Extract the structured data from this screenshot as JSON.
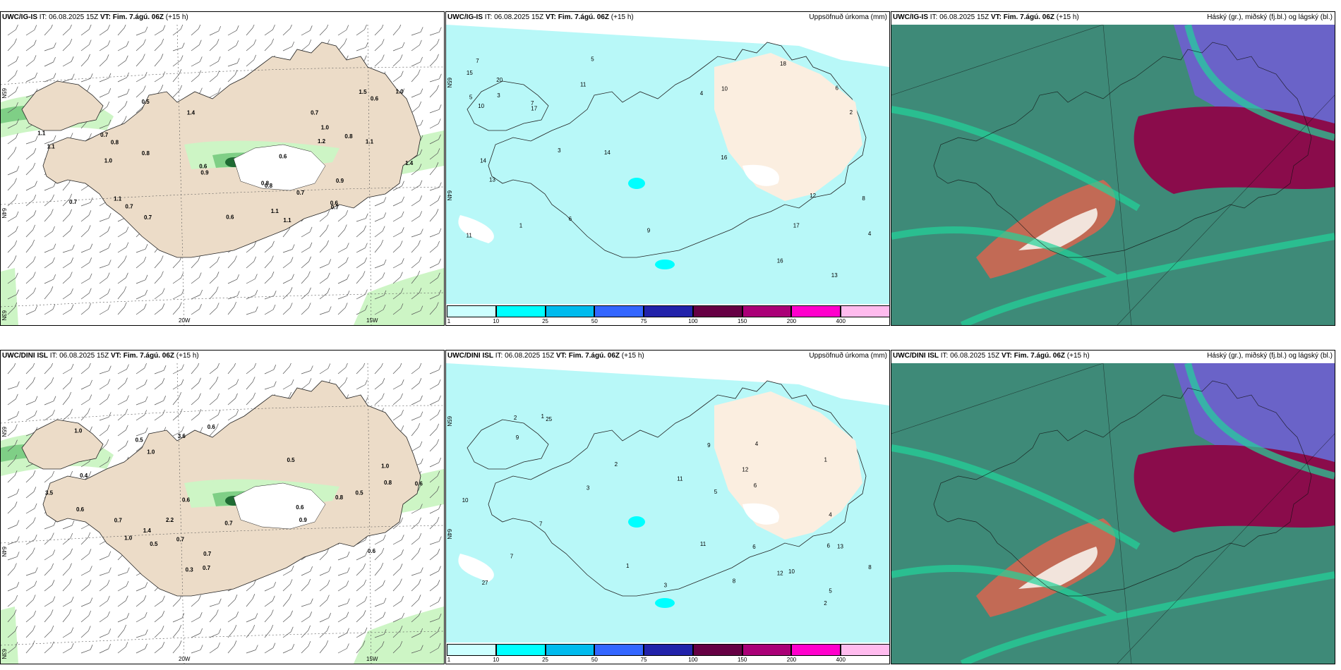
{
  "panels": [
    {
      "model": "UWC/IG-IS",
      "it_label": "IT:",
      "it_value": "06.08.2025 15Z",
      "vt_label": "VT:",
      "vt_value": "Fim. 7.ágú. 06Z",
      "lead": "(+15 h)",
      "right_title": "",
      "type": "precip-wind",
      "lat_labels": [
        "65N",
        "64N",
        "63N"
      ],
      "lon_labels": [
        "20W",
        "15W"
      ],
      "values": [
        "1.1",
        "0.5",
        "1.1",
        "0.7",
        "0.8",
        "1.1",
        "1.4",
        "0.8",
        "0.9",
        "0.7",
        "0.7",
        "1.1",
        "0.6",
        "0.8",
        "1.2",
        "1.5",
        "1.1",
        "0.6",
        "0.9",
        "1.1",
        "0.6",
        "0.8",
        "0.7",
        "0.7",
        "0.6",
        "1.0",
        "1.0",
        "0.8",
        "0.6",
        "1.4",
        "0.7",
        "1.0",
        "0.7"
      ]
    },
    {
      "model": "UWC/IG-IS",
      "it_label": "IT:",
      "it_value": "06.08.2025 15Z",
      "vt_label": "VT:",
      "vt_value": "Fim. 7.ágú. 06Z",
      "lead": "(+15 h)",
      "right_title": "Uppsöfnuð úrkoma (mm)",
      "type": "accum",
      "lat_labels": [
        "65N",
        "64N"
      ],
      "values": [
        "20",
        "14",
        "16",
        "11",
        "10",
        "7",
        "6",
        "4",
        "5",
        "7",
        "9",
        "17",
        "13",
        "14",
        "12",
        "11",
        "15",
        "16",
        "17",
        "18",
        "13",
        "10",
        "8",
        "4",
        "3",
        "2",
        "1",
        "3",
        "5",
        "6"
      ]
    },
    {
      "model": "UWC/IG-IS",
      "it_label": "IT:",
      "it_value": "06.08.2025 15Z",
      "vt_label": "VT:",
      "vt_value": "Fim. 7.ágú. 06Z",
      "lead": "(+15 h)",
      "right_title": "Háský (gr.), miðský (fj.bl.) og lágský (bl.)",
      "type": "cloud"
    },
    {
      "model": "UWC/DINI ISL",
      "it_label": "IT:",
      "it_value": "06.08.2025 15Z",
      "vt_label": "VT:",
      "vt_value": "Fim. 7.ágú. 06Z",
      "lead": "(+15 h)",
      "right_title": "",
      "type": "precip-wind",
      "lat_labels": [
        "65N",
        "64N",
        "63N"
      ],
      "lon_labels": [
        "20W",
        "15W"
      ],
      "values": [
        "2.2",
        "0.5",
        "0.7",
        "0.6",
        "0.7",
        "1.0",
        "0.5",
        "0.7",
        "0.5",
        "0.7",
        "1.0",
        "0.6",
        "1.0",
        "0.7",
        "0.5",
        "0.9",
        "1.4",
        "0.8",
        "0.6",
        "0.4",
        "0.3",
        "0.8",
        "1.0",
        "0.6",
        "0.6",
        "0.6",
        "3.5",
        "3.6"
      ]
    },
    {
      "model": "UWC/DINI ISL",
      "it_label": "IT:",
      "it_value": "06.08.2025 15Z",
      "vt_label": "VT:",
      "vt_value": "Fim. 7.ágú. 06Z",
      "lead": "(+15 h)",
      "right_title": "Uppsöfnuð úrkoma (mm)",
      "type": "accum",
      "lat_labels": [
        "65N",
        "64N"
      ],
      "values": [
        "7",
        "5",
        "6",
        "8",
        "9",
        "10",
        "11",
        "12",
        "13",
        "27",
        "25",
        "11",
        "4",
        "3",
        "2",
        "1",
        "2",
        "1",
        "5",
        "6",
        "7",
        "4",
        "3",
        "2",
        "1",
        "10",
        "12",
        "8",
        "9",
        "6"
      ]
    },
    {
      "model": "UWC/DINI ISL",
      "it_label": "IT:",
      "it_value": "06.08.2025 15Z",
      "vt_label": "VT:",
      "vt_value": "Fim. 7.ágú. 06Z",
      "lead": "(+15 h)",
      "right_title": "Háský (gr.), miðský (fj.bl.) og lágský (bl.)",
      "type": "cloud"
    }
  ],
  "colorbar": {
    "ticks": [
      "1",
      "10",
      "25",
      "50",
      "75",
      "100",
      "150",
      "200",
      "400"
    ],
    "colors": [
      "#ccffff",
      "#00ffff",
      "#00bbee",
      "#3366ff",
      "#2222aa",
      "#660044",
      "#aa0077",
      "#ff00cc",
      "#ffbbee"
    ]
  },
  "colors": {
    "land": "#ecdcc8",
    "land_accum": "#fbeee0",
    "sea_accum": "#b8f8f8",
    "precip_light": "#cdf5c5",
    "precip_mid": "#7fcf86",
    "precip_dark": "#1f6b33",
    "cloud_high": "#3e8a78",
    "cloud_mid": "#6a63c8",
    "cloud_low": "#8a0c4b",
    "cloud_green": "#22d49a"
  }
}
